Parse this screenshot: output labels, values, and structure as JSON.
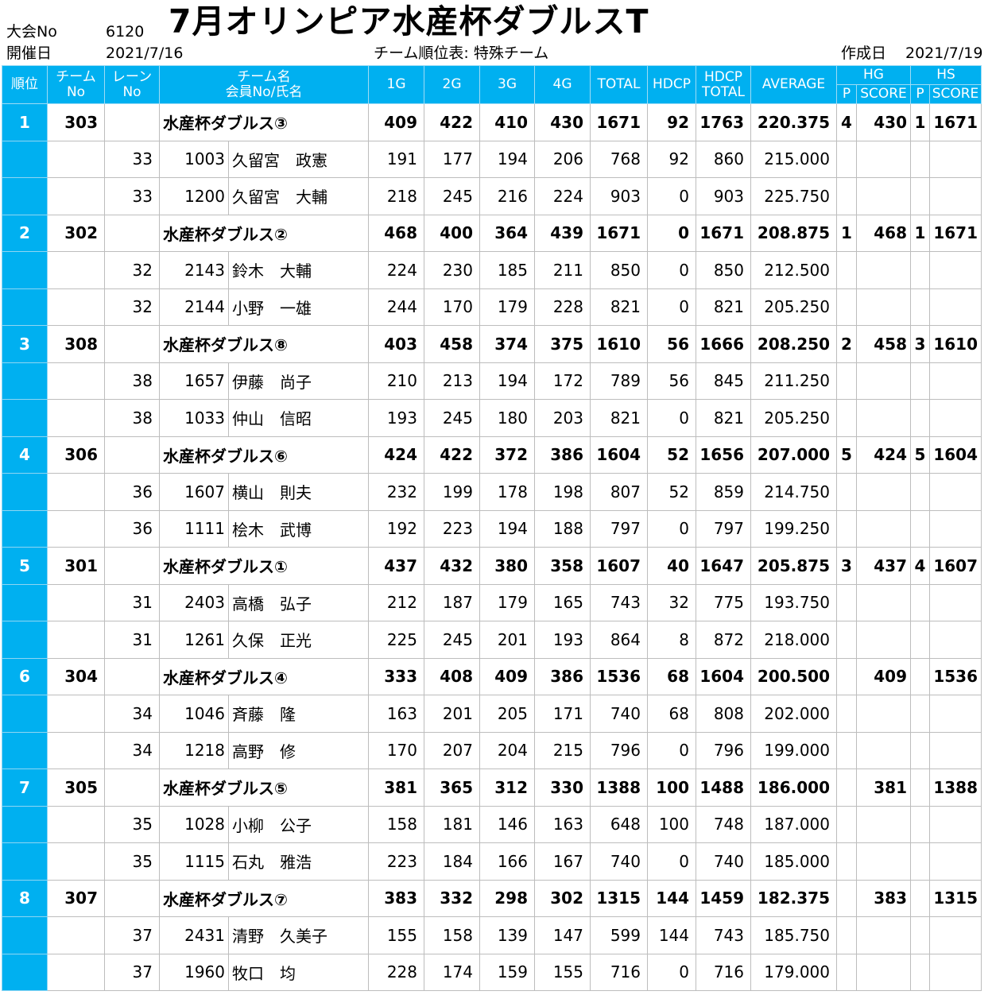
{
  "header": {
    "event_no_label": "大会No",
    "event_no": "6120",
    "date_label": "開催日",
    "date": "2021/7/16",
    "title": "7月オリンピア水産杯ダブルスT",
    "report_name": "チーム順位表: 特殊チーム",
    "created_label": "作成日",
    "created_date": "2021/7/19"
  },
  "columns": {
    "rank": "順位",
    "team_no_1": "チーム",
    "team_no_2": "No",
    "lane_1": "レーン",
    "lane_2": "No",
    "name_1": "チーム名",
    "name_2": "会員No/氏名",
    "g1": "1G",
    "g2": "2G",
    "g3": "3G",
    "g4": "4G",
    "total": "TOTAL",
    "hdcp": "HDCP",
    "hdcp_total_1": "HDCP",
    "hdcp_total_2": "TOTAL",
    "average": "AVERAGE",
    "hg": "HG",
    "hs": "HS",
    "p": "P",
    "score": "SCORE"
  },
  "teams": [
    {
      "rank": "1",
      "team_no": "303",
      "name": "水産杯ダブルス③",
      "g1": "409",
      "g2": "422",
      "g3": "410",
      "g4": "430",
      "total": "1671",
      "hdcp": "92",
      "hdcp_total": "1763",
      "average": "220.375",
      "hg_p": "4",
      "hg_score": "430",
      "hs_p": "1",
      "hs_score": "1671",
      "members": [
        {
          "lane": "33",
          "member_no": "1003",
          "name": "久留宮　政憲",
          "g1": "191",
          "g2": "177",
          "g3": "194",
          "g4": "206",
          "total": "768",
          "hdcp": "92",
          "hdcp_total": "860",
          "average": "215.000"
        },
        {
          "lane": "33",
          "member_no": "1200",
          "name": "久留宮　大輔",
          "g1": "218",
          "g2": "245",
          "g3": "216",
          "g4": "224",
          "total": "903",
          "hdcp": "0",
          "hdcp_total": "903",
          "average": "225.750"
        }
      ]
    },
    {
      "rank": "2",
      "team_no": "302",
      "name": "水産杯ダブルス②",
      "g1": "468",
      "g2": "400",
      "g3": "364",
      "g4": "439",
      "total": "1671",
      "hdcp": "0",
      "hdcp_total": "1671",
      "average": "208.875",
      "hg_p": "1",
      "hg_score": "468",
      "hs_p": "1",
      "hs_score": "1671",
      "members": [
        {
          "lane": "32",
          "member_no": "2143",
          "name": "鈴木　大輔",
          "g1": "224",
          "g2": "230",
          "g3": "185",
          "g4": "211",
          "total": "850",
          "hdcp": "0",
          "hdcp_total": "850",
          "average": "212.500"
        },
        {
          "lane": "32",
          "member_no": "2144",
          "name": "小野　一雄",
          "g1": "244",
          "g2": "170",
          "g3": "179",
          "g4": "228",
          "total": "821",
          "hdcp": "0",
          "hdcp_total": "821",
          "average": "205.250"
        }
      ]
    },
    {
      "rank": "3",
      "team_no": "308",
      "name": "水産杯ダブルス⑧",
      "g1": "403",
      "g2": "458",
      "g3": "374",
      "g4": "375",
      "total": "1610",
      "hdcp": "56",
      "hdcp_total": "1666",
      "average": "208.250",
      "hg_p": "2",
      "hg_score": "458",
      "hs_p": "3",
      "hs_score": "1610",
      "members": [
        {
          "lane": "38",
          "member_no": "1657",
          "name": "伊藤　尚子",
          "g1": "210",
          "g2": "213",
          "g3": "194",
          "g4": "172",
          "total": "789",
          "hdcp": "56",
          "hdcp_total": "845",
          "average": "211.250"
        },
        {
          "lane": "38",
          "member_no": "1033",
          "name": "仲山　信昭",
          "g1": "193",
          "g2": "245",
          "g3": "180",
          "g4": "203",
          "total": "821",
          "hdcp": "0",
          "hdcp_total": "821",
          "average": "205.250"
        }
      ]
    },
    {
      "rank": "4",
      "team_no": "306",
      "name": "水産杯ダブルス⑥",
      "g1": "424",
      "g2": "422",
      "g3": "372",
      "g4": "386",
      "total": "1604",
      "hdcp": "52",
      "hdcp_total": "1656",
      "average": "207.000",
      "hg_p": "5",
      "hg_score": "424",
      "hs_p": "5",
      "hs_score": "1604",
      "members": [
        {
          "lane": "36",
          "member_no": "1607",
          "name": "横山　則夫",
          "g1": "232",
          "g2": "199",
          "g3": "178",
          "g4": "198",
          "total": "807",
          "hdcp": "52",
          "hdcp_total": "859",
          "average": "214.750"
        },
        {
          "lane": "36",
          "member_no": "1111",
          "name": "桧木　武博",
          "g1": "192",
          "g2": "223",
          "g3": "194",
          "g4": "188",
          "total": "797",
          "hdcp": "0",
          "hdcp_total": "797",
          "average": "199.250"
        }
      ]
    },
    {
      "rank": "5",
      "team_no": "301",
      "name": "水産杯ダブルス①",
      "g1": "437",
      "g2": "432",
      "g3": "380",
      "g4": "358",
      "total": "1607",
      "hdcp": "40",
      "hdcp_total": "1647",
      "average": "205.875",
      "hg_p": "3",
      "hg_score": "437",
      "hs_p": "4",
      "hs_score": "1607",
      "members": [
        {
          "lane": "31",
          "member_no": "2403",
          "name": "高橋　弘子",
          "g1": "212",
          "g2": "187",
          "g3": "179",
          "g4": "165",
          "total": "743",
          "hdcp": "32",
          "hdcp_total": "775",
          "average": "193.750"
        },
        {
          "lane": "31",
          "member_no": "1261",
          "name": "久保　正光",
          "g1": "225",
          "g2": "245",
          "g3": "201",
          "g4": "193",
          "total": "864",
          "hdcp": "8",
          "hdcp_total": "872",
          "average": "218.000"
        }
      ]
    },
    {
      "rank": "6",
      "team_no": "304",
      "name": "水産杯ダブルス④",
      "g1": "333",
      "g2": "408",
      "g3": "409",
      "g4": "386",
      "total": "1536",
      "hdcp": "68",
      "hdcp_total": "1604",
      "average": "200.500",
      "hg_p": "",
      "hg_score": "409",
      "hs_p": "",
      "hs_score": "1536",
      "members": [
        {
          "lane": "34",
          "member_no": "1046",
          "name": "斉藤　隆",
          "g1": "163",
          "g2": "201",
          "g3": "205",
          "g4": "171",
          "total": "740",
          "hdcp": "68",
          "hdcp_total": "808",
          "average": "202.000"
        },
        {
          "lane": "34",
          "member_no": "1218",
          "name": "高野　修",
          "g1": "170",
          "g2": "207",
          "g3": "204",
          "g4": "215",
          "total": "796",
          "hdcp": "0",
          "hdcp_total": "796",
          "average": "199.000"
        }
      ]
    },
    {
      "rank": "7",
      "team_no": "305",
      "name": "水産杯ダブルス⑤",
      "g1": "381",
      "g2": "365",
      "g3": "312",
      "g4": "330",
      "total": "1388",
      "hdcp": "100",
      "hdcp_total": "1488",
      "average": "186.000",
      "hg_p": "",
      "hg_score": "381",
      "hs_p": "",
      "hs_score": "1388",
      "members": [
        {
          "lane": "35",
          "member_no": "1028",
          "name": "小柳　公子",
          "g1": "158",
          "g2": "181",
          "g3": "146",
          "g4": "163",
          "total": "648",
          "hdcp": "100",
          "hdcp_total": "748",
          "average": "187.000"
        },
        {
          "lane": "35",
          "member_no": "1115",
          "name": "石丸　雅浩",
          "g1": "223",
          "g2": "184",
          "g3": "166",
          "g4": "167",
          "total": "740",
          "hdcp": "0",
          "hdcp_total": "740",
          "average": "185.000"
        }
      ]
    },
    {
      "rank": "8",
      "team_no": "307",
      "name": "水産杯ダブルス⑦",
      "g1": "383",
      "g2": "332",
      "g3": "298",
      "g4": "302",
      "total": "1315",
      "hdcp": "144",
      "hdcp_total": "1459",
      "average": "182.375",
      "hg_p": "",
      "hg_score": "383",
      "hs_p": "",
      "hs_score": "1315",
      "members": [
        {
          "lane": "37",
          "member_no": "2431",
          "name": "清野　久美子",
          "g1": "155",
          "g2": "158",
          "g3": "139",
          "g4": "147",
          "total": "599",
          "hdcp": "144",
          "hdcp_total": "743",
          "average": "185.750"
        },
        {
          "lane": "37",
          "member_no": "1960",
          "name": "牧口　均",
          "g1": "228",
          "g2": "174",
          "g3": "159",
          "g4": "155",
          "total": "716",
          "hdcp": "0",
          "hdcp_total": "716",
          "average": "179.000"
        }
      ]
    }
  ]
}
